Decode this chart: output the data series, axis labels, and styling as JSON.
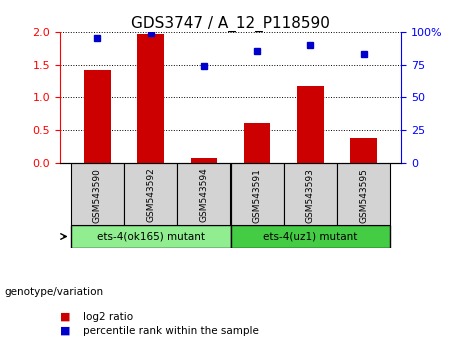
{
  "title": "GDS3747 / A_12_P118590",
  "samples": [
    "GSM543590",
    "GSM543592",
    "GSM543594",
    "GSM543591",
    "GSM543593",
    "GSM543595"
  ],
  "log2_ratio": [
    1.41,
    1.97,
    0.07,
    0.6,
    1.17,
    0.38
  ],
  "percentile_rank": [
    95,
    99,
    74,
    85,
    90,
    83
  ],
  "bar_color": "#cc0000",
  "dot_color": "#0000cc",
  "ylim_left": [
    0,
    2
  ],
  "ylim_right": [
    0,
    100
  ],
  "yticks_left": [
    0,
    0.5,
    1.0,
    1.5,
    2.0
  ],
  "yticks_right": [
    0,
    25,
    50,
    75,
    100
  ],
  "yticklabels_right": [
    "0",
    "25",
    "50",
    "75",
    "100%"
  ],
  "groups": [
    {
      "label": "ets-4(ok165) mutant",
      "indices": [
        0,
        1,
        2
      ],
      "color": "#90ee90"
    },
    {
      "label": "ets-4(uz1) mutant",
      "indices": [
        3,
        4,
        5
      ],
      "color": "#44cc44"
    }
  ],
  "group_label": "genotype/variation",
  "legend_items": [
    {
      "color": "#cc0000",
      "label": "log2 ratio"
    },
    {
      "color": "#0000cc",
      "label": "percentile rank within the sample"
    }
  ],
  "bar_width": 0.5,
  "title_fontsize": 11,
  "tick_fontsize": 8,
  "label_fontsize": 7.5,
  "legend_fontsize": 7.5
}
